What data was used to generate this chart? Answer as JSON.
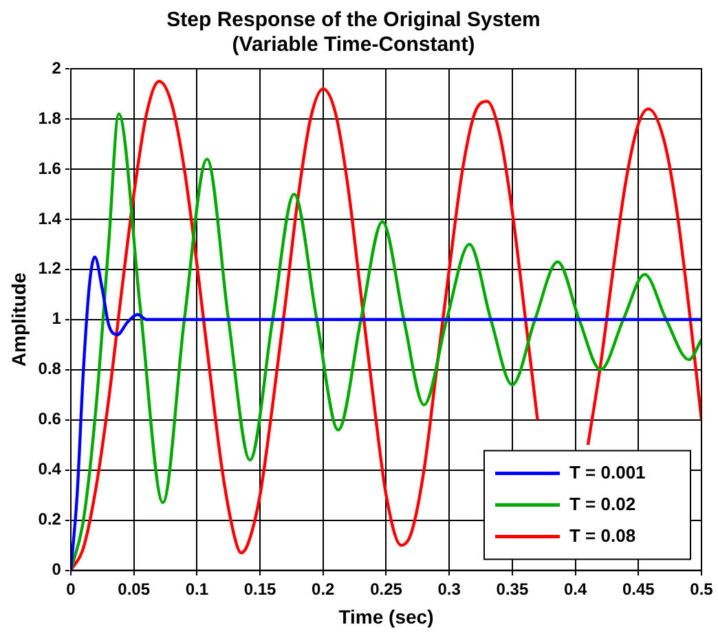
{
  "chart_data": {
    "type": "line",
    "title": "Step Response of the Original System\n(Variable Time-Constant)",
    "xlabel": "Time (sec)",
    "ylabel": "Amplitude",
    "xlim": [
      0,
      0.5
    ],
    "xticks": [
      0,
      0.05,
      0.1,
      0.15,
      0.2,
      0.25,
      0.3,
      0.35,
      0.4,
      0.45,
      0.5
    ],
    "ylim": [
      0,
      2
    ],
    "yticks": [
      0,
      0.2,
      0.4,
      0.6,
      0.8,
      1,
      1.2,
      1.4,
      1.6,
      1.8,
      2
    ],
    "grid": true,
    "legend": "bottom right",
    "marker": "none",
    "line_style": "solid",
    "series": [
      {
        "name": "T = 0.001",
        "color": "#0000ff",
        "x": [
          0,
          0.005,
          0.01,
          0.015,
          0.019,
          0.025,
          0.03,
          0.037,
          0.045,
          0.053,
          0.06,
          0.5
        ],
        "values": [
          0,
          0.3,
          0.8,
          1.15,
          1.25,
          1.12,
          0.98,
          0.94,
          0.99,
          1.02,
          1,
          1
        ]
      },
      {
        "name": "T = 0.02",
        "color": "#00aa00",
        "x": [
          0,
          0.01,
          0.02,
          0.03,
          0.038,
          0.055,
          0.073,
          0.09,
          0.108,
          0.125,
          0.142,
          0.16,
          0.177,
          0.195,
          0.212,
          0.23,
          0.247,
          0.264,
          0.28,
          0.298,
          0.316,
          0.333,
          0.35,
          0.368,
          0.386,
          0.403,
          0.42,
          0.438,
          0.455,
          0.472,
          0.49,
          0.5
        ],
        "values": [
          0,
          0.2,
          0.65,
          1.3,
          1.82,
          1.05,
          0.27,
          1,
          1.64,
          1,
          0.44,
          1,
          1.5,
          1,
          0.56,
          1,
          1.39,
          1,
          0.66,
          1,
          1.3,
          1,
          0.74,
          1,
          1.23,
          1,
          0.8,
          1,
          1.18,
          1,
          0.84,
          0.92
        ]
      },
      {
        "name": "T = 0.08",
        "color": "#ff0000",
        "x": [
          0,
          0.01,
          0.02,
          0.03,
          0.04,
          0.05,
          0.06,
          0.07,
          0.08,
          0.09,
          0.1,
          0.11,
          0.12,
          0.13,
          0.135,
          0.14,
          0.15,
          0.16,
          0.17,
          0.18,
          0.19,
          0.2,
          0.21,
          0.22,
          0.23,
          0.24,
          0.25,
          0.262,
          0.27,
          0.28,
          0.29,
          0.3,
          0.31,
          0.32,
          0.33,
          0.34,
          0.35,
          0.36,
          0.37,
          0.38,
          0.39,
          0.4,
          0.41,
          0.42,
          0.43,
          0.44,
          0.45,
          0.458,
          0.47,
          0.48,
          0.49,
          0.5
        ],
        "values": [
          0,
          0.09,
          0.33,
          0.68,
          1.1,
          1.5,
          1.82,
          1.95,
          1.86,
          1.6,
          1.22,
          0.8,
          0.4,
          0.13,
          0.07,
          0.1,
          0.3,
          0.66,
          1.06,
          1.48,
          1.8,
          1.92,
          1.82,
          1.52,
          1.1,
          0.68,
          0.3,
          0.1,
          0.15,
          0.4,
          0.8,
          1.2,
          1.58,
          1.82,
          1.87,
          1.74,
          1.43,
          1.02,
          0.6,
          null,
          null,
          null,
          0.5,
          0.82,
          1.2,
          1.55,
          1.78,
          1.84,
          1.72,
          1.45,
          1.05,
          0.6
        ]
      }
    ]
  }
}
